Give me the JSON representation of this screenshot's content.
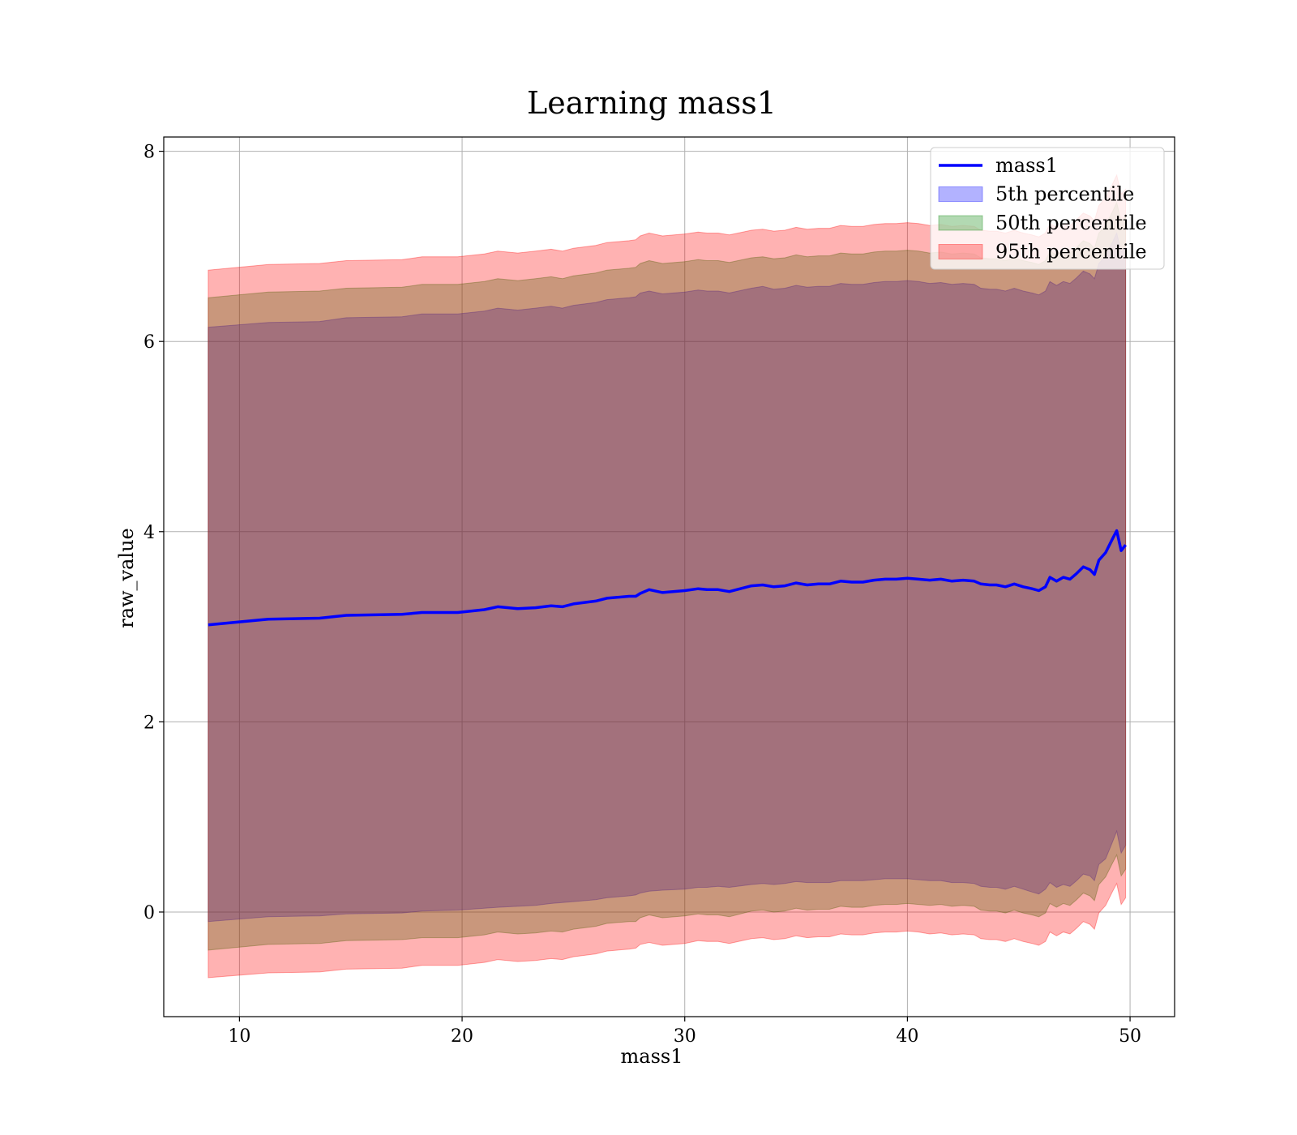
{
  "chart_data": {
    "type": "area",
    "title": "Learning mass1",
    "xlabel": "mass1",
    "ylabel": "raw_value",
    "xlim": [
      6.6,
      52
    ],
    "ylim": [
      -1.1,
      8.15
    ],
    "xticks": [
      10,
      20,
      30,
      40,
      50
    ],
    "yticks": [
      0,
      2,
      4,
      6,
      8
    ],
    "grid": true,
    "legend_position": "top-right",
    "x": [
      8.6,
      11.3,
      13.6,
      14.8,
      17.3,
      18.2,
      19.8,
      21.0,
      21.6,
      22.5,
      23.3,
      24.0,
      24.5,
      25.0,
      26.0,
      26.5,
      27.5,
      27.8,
      28.0,
      28.4,
      29.0,
      30.0,
      30.6,
      31.0,
      31.5,
      32.0,
      33.0,
      33.5,
      34.0,
      34.5,
      35.0,
      35.5,
      36.0,
      36.5,
      37.0,
      37.5,
      38.0,
      38.5,
      39.0,
      39.5,
      40.0,
      40.5,
      41.0,
      41.5,
      42.0,
      42.5,
      43.0,
      43.3,
      43.7,
      44.0,
      44.4,
      44.8,
      45.2,
      45.6,
      45.9,
      46.2,
      46.4,
      46.7,
      47.0,
      47.3,
      47.6,
      47.9,
      48.2,
      48.4,
      48.6,
      48.9,
      49.2,
      49.4,
      49.6,
      49.8
    ],
    "series": [
      {
        "name": "mass1",
        "kind": "line",
        "color": "#0000ff",
        "values": [
          3.02,
          3.08,
          3.09,
          3.12,
          3.13,
          3.15,
          3.15,
          3.18,
          3.21,
          3.19,
          3.2,
          3.22,
          3.21,
          3.24,
          3.27,
          3.3,
          3.32,
          3.32,
          3.35,
          3.39,
          3.36,
          3.38,
          3.4,
          3.39,
          3.39,
          3.37,
          3.43,
          3.44,
          3.42,
          3.43,
          3.46,
          3.44,
          3.45,
          3.45,
          3.48,
          3.47,
          3.47,
          3.49,
          3.5,
          3.5,
          3.51,
          3.5,
          3.49,
          3.5,
          3.48,
          3.49,
          3.48,
          3.45,
          3.44,
          3.44,
          3.42,
          3.45,
          3.42,
          3.4,
          3.38,
          3.42,
          3.52,
          3.48,
          3.52,
          3.5,
          3.56,
          3.63,
          3.6,
          3.55,
          3.7,
          3.78,
          3.92,
          4.01,
          3.8,
          3.86
        ]
      },
      {
        "name": "5th percentile",
        "kind": "band",
        "color": "#0000ff",
        "lower": [
          -0.1,
          -0.05,
          -0.04,
          -0.02,
          -0.01,
          0.01,
          0.02,
          0.04,
          0.05,
          0.06,
          0.07,
          0.09,
          0.1,
          0.11,
          0.13,
          0.15,
          0.17,
          0.18,
          0.2,
          0.22,
          0.23,
          0.24,
          0.26,
          0.26,
          0.27,
          0.26,
          0.29,
          0.3,
          0.29,
          0.3,
          0.32,
          0.31,
          0.31,
          0.31,
          0.33,
          0.33,
          0.33,
          0.34,
          0.35,
          0.35,
          0.35,
          0.34,
          0.33,
          0.33,
          0.31,
          0.31,
          0.3,
          0.27,
          0.26,
          0.26,
          0.24,
          0.27,
          0.24,
          0.21,
          0.19,
          0.24,
          0.31,
          0.26,
          0.29,
          0.27,
          0.33,
          0.4,
          0.38,
          0.33,
          0.5,
          0.56,
          0.73,
          0.85,
          0.62,
          0.7
        ],
        "upper": [
          6.15,
          6.2,
          6.21,
          6.25,
          6.26,
          6.29,
          6.29,
          6.32,
          6.35,
          6.33,
          6.35,
          6.37,
          6.35,
          6.38,
          6.41,
          6.44,
          6.46,
          6.47,
          6.51,
          6.53,
          6.5,
          6.52,
          6.54,
          6.53,
          6.53,
          6.51,
          6.56,
          6.58,
          6.55,
          6.56,
          6.59,
          6.57,
          6.58,
          6.58,
          6.61,
          6.6,
          6.6,
          6.62,
          6.63,
          6.63,
          6.64,
          6.63,
          6.61,
          6.62,
          6.6,
          6.61,
          6.6,
          6.56,
          6.55,
          6.55,
          6.53,
          6.56,
          6.53,
          6.51,
          6.49,
          6.53,
          6.63,
          6.59,
          6.63,
          6.61,
          6.67,
          6.74,
          6.71,
          6.66,
          6.82,
          6.9,
          7.04,
          7.14,
          6.94,
          6.99
        ]
      },
      {
        "name": "50th percentile",
        "kind": "band",
        "color": "#008000",
        "lower": [
          -0.4,
          -0.34,
          -0.33,
          -0.3,
          -0.29,
          -0.27,
          -0.27,
          -0.24,
          -0.21,
          -0.23,
          -0.22,
          -0.2,
          -0.21,
          -0.18,
          -0.15,
          -0.12,
          -0.1,
          -0.1,
          -0.06,
          -0.03,
          -0.06,
          -0.04,
          -0.02,
          -0.03,
          -0.03,
          -0.05,
          0.01,
          0.02,
          0.0,
          0.01,
          0.04,
          0.02,
          0.03,
          0.03,
          0.06,
          0.05,
          0.05,
          0.07,
          0.08,
          0.08,
          0.09,
          0.08,
          0.07,
          0.08,
          0.06,
          0.07,
          0.06,
          0.02,
          0.01,
          0.01,
          -0.01,
          0.02,
          -0.01,
          -0.03,
          -0.05,
          -0.01,
          0.09,
          0.05,
          0.09,
          0.07,
          0.13,
          0.2,
          0.17,
          0.12,
          0.29,
          0.37,
          0.51,
          0.6,
          0.38,
          0.45
        ],
        "upper": [
          6.46,
          6.52,
          6.53,
          6.56,
          6.57,
          6.6,
          6.6,
          6.63,
          6.66,
          6.64,
          6.66,
          6.68,
          6.66,
          6.69,
          6.72,
          6.75,
          6.77,
          6.78,
          6.82,
          6.85,
          6.82,
          6.84,
          6.86,
          6.85,
          6.85,
          6.83,
          6.88,
          6.89,
          6.87,
          6.88,
          6.91,
          6.89,
          6.9,
          6.9,
          6.93,
          6.92,
          6.92,
          6.94,
          6.95,
          6.95,
          6.96,
          6.95,
          6.93,
          6.94,
          6.92,
          6.93,
          6.92,
          6.88,
          6.87,
          6.87,
          6.85,
          6.88,
          6.85,
          6.83,
          6.81,
          6.85,
          6.95,
          6.91,
          6.95,
          6.93,
          6.99,
          7.06,
          7.03,
          6.98,
          7.14,
          7.22,
          7.36,
          7.46,
          7.26,
          7.31
        ]
      },
      {
        "name": "95th percentile",
        "kind": "band",
        "color": "#ff0000",
        "lower": [
          -0.69,
          -0.64,
          -0.63,
          -0.6,
          -0.59,
          -0.56,
          -0.56,
          -0.53,
          -0.5,
          -0.52,
          -0.51,
          -0.49,
          -0.5,
          -0.47,
          -0.44,
          -0.41,
          -0.39,
          -0.38,
          -0.34,
          -0.32,
          -0.35,
          -0.33,
          -0.3,
          -0.31,
          -0.31,
          -0.33,
          -0.28,
          -0.27,
          -0.29,
          -0.28,
          -0.25,
          -0.27,
          -0.26,
          -0.26,
          -0.23,
          -0.24,
          -0.24,
          -0.22,
          -0.21,
          -0.21,
          -0.2,
          -0.21,
          -0.23,
          -0.22,
          -0.24,
          -0.23,
          -0.24,
          -0.28,
          -0.29,
          -0.29,
          -0.31,
          -0.28,
          -0.31,
          -0.33,
          -0.35,
          -0.31,
          -0.21,
          -0.25,
          -0.21,
          -0.23,
          -0.17,
          -0.1,
          -0.13,
          -0.18,
          -0.01,
          0.07,
          0.21,
          0.3,
          0.08,
          0.15
        ],
        "upper": [
          6.75,
          6.81,
          6.82,
          6.85,
          6.86,
          6.89,
          6.89,
          6.92,
          6.95,
          6.93,
          6.95,
          6.97,
          6.95,
          6.98,
          7.01,
          7.04,
          7.06,
          7.07,
          7.11,
          7.14,
          7.11,
          7.13,
          7.15,
          7.14,
          7.14,
          7.12,
          7.17,
          7.18,
          7.16,
          7.17,
          7.2,
          7.18,
          7.19,
          7.19,
          7.22,
          7.21,
          7.21,
          7.23,
          7.24,
          7.24,
          7.25,
          7.24,
          7.22,
          7.23,
          7.21,
          7.22,
          7.21,
          7.17,
          7.16,
          7.16,
          7.14,
          7.17,
          7.14,
          7.12,
          7.1,
          7.14,
          7.24,
          7.2,
          7.24,
          7.22,
          7.28,
          7.35,
          7.32,
          7.27,
          7.43,
          7.51,
          7.65,
          7.75,
          7.55,
          7.6
        ]
      }
    ]
  }
}
